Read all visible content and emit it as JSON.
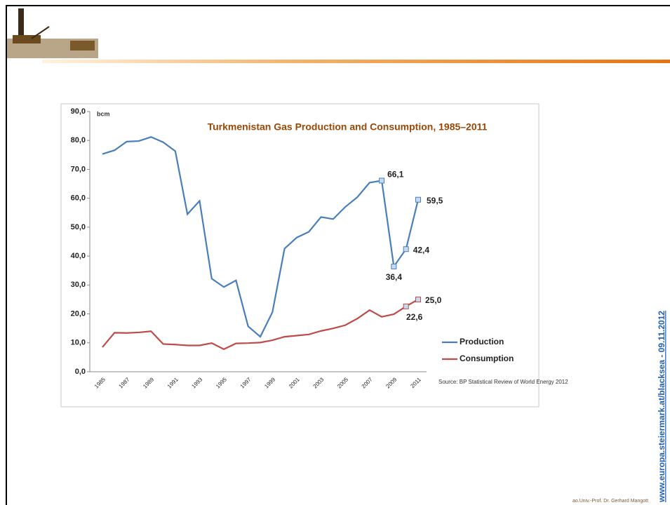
{
  "slide": {
    "footer": "ao.Univ.-Prof. Dr. Gerhard Mangott",
    "side_text": "www.europa.steiermark.at/blacksea - 09.11.2012"
  },
  "chart_data": {
    "type": "line",
    "title": "Turkmenistan Gas Production and Consumption, 1985–2011",
    "y_label": "bcm",
    "source": "Source: BP Statistical Review of World Energy 2012",
    "categories": [
      "1985",
      null,
      "1987",
      null,
      "1989",
      null,
      "1991",
      null,
      "1993",
      null,
      "1995",
      null,
      "1997",
      null,
      "1999",
      null,
      "2001",
      null,
      "2003",
      null,
      "2005",
      null,
      "2007",
      null,
      "2009",
      null,
      "2011"
    ],
    "ylim": [
      0,
      90
    ],
    "yticks": [
      {
        "value": 0,
        "label": "0,0"
      },
      {
        "value": 10,
        "label": "10,0"
      },
      {
        "value": 20,
        "label": "20,0"
      },
      {
        "value": 30,
        "label": "30,0"
      },
      {
        "value": 40,
        "label": "40,0"
      },
      {
        "value": 50,
        "label": "50,0"
      },
      {
        "value": 60,
        "label": "60,0"
      },
      {
        "value": 70,
        "label": "70,0"
      },
      {
        "value": 80,
        "label": "80,0"
      },
      {
        "value": 90,
        "label": "90,0"
      }
    ],
    "series": [
      {
        "name": "Production",
        "color": "#4a7ebb",
        "values": [
          75.3,
          76.6,
          79.6,
          79.8,
          81.2,
          79.4,
          76.3,
          54.5,
          59.1,
          32.2,
          29.3,
          31.6,
          15.7,
          12.1,
          20.6,
          42.6,
          46.4,
          48.4,
          53.5,
          52.8,
          57.0,
          60.4,
          65.4,
          66.1,
          36.4,
          42.4,
          59.5
        ],
        "value_labels": [
          null,
          null,
          null,
          null,
          null,
          null,
          null,
          null,
          null,
          null,
          null,
          null,
          null,
          null,
          null,
          null,
          null,
          null,
          null,
          null,
          null,
          null,
          null,
          "66,1",
          "36,4",
          "42,4",
          "59,5"
        ]
      },
      {
        "name": "Consumption",
        "color": "#be4b48",
        "values": [
          8.5,
          13.5,
          13.4,
          13.6,
          14.0,
          9.6,
          9.4,
          9.1,
          9.1,
          9.9,
          7.8,
          9.8,
          9.9,
          10.1,
          10.9,
          12.1,
          12.5,
          12.9,
          14.1,
          15.0,
          16.1,
          18.4,
          21.3,
          19.0,
          19.9,
          22.6,
          25.0
        ],
        "value_labels": [
          null,
          null,
          null,
          null,
          null,
          null,
          null,
          null,
          null,
          null,
          null,
          null,
          null,
          null,
          null,
          null,
          null,
          null,
          null,
          null,
          null,
          null,
          null,
          null,
          null,
          "22,6",
          "25,0"
        ]
      }
    ]
  }
}
